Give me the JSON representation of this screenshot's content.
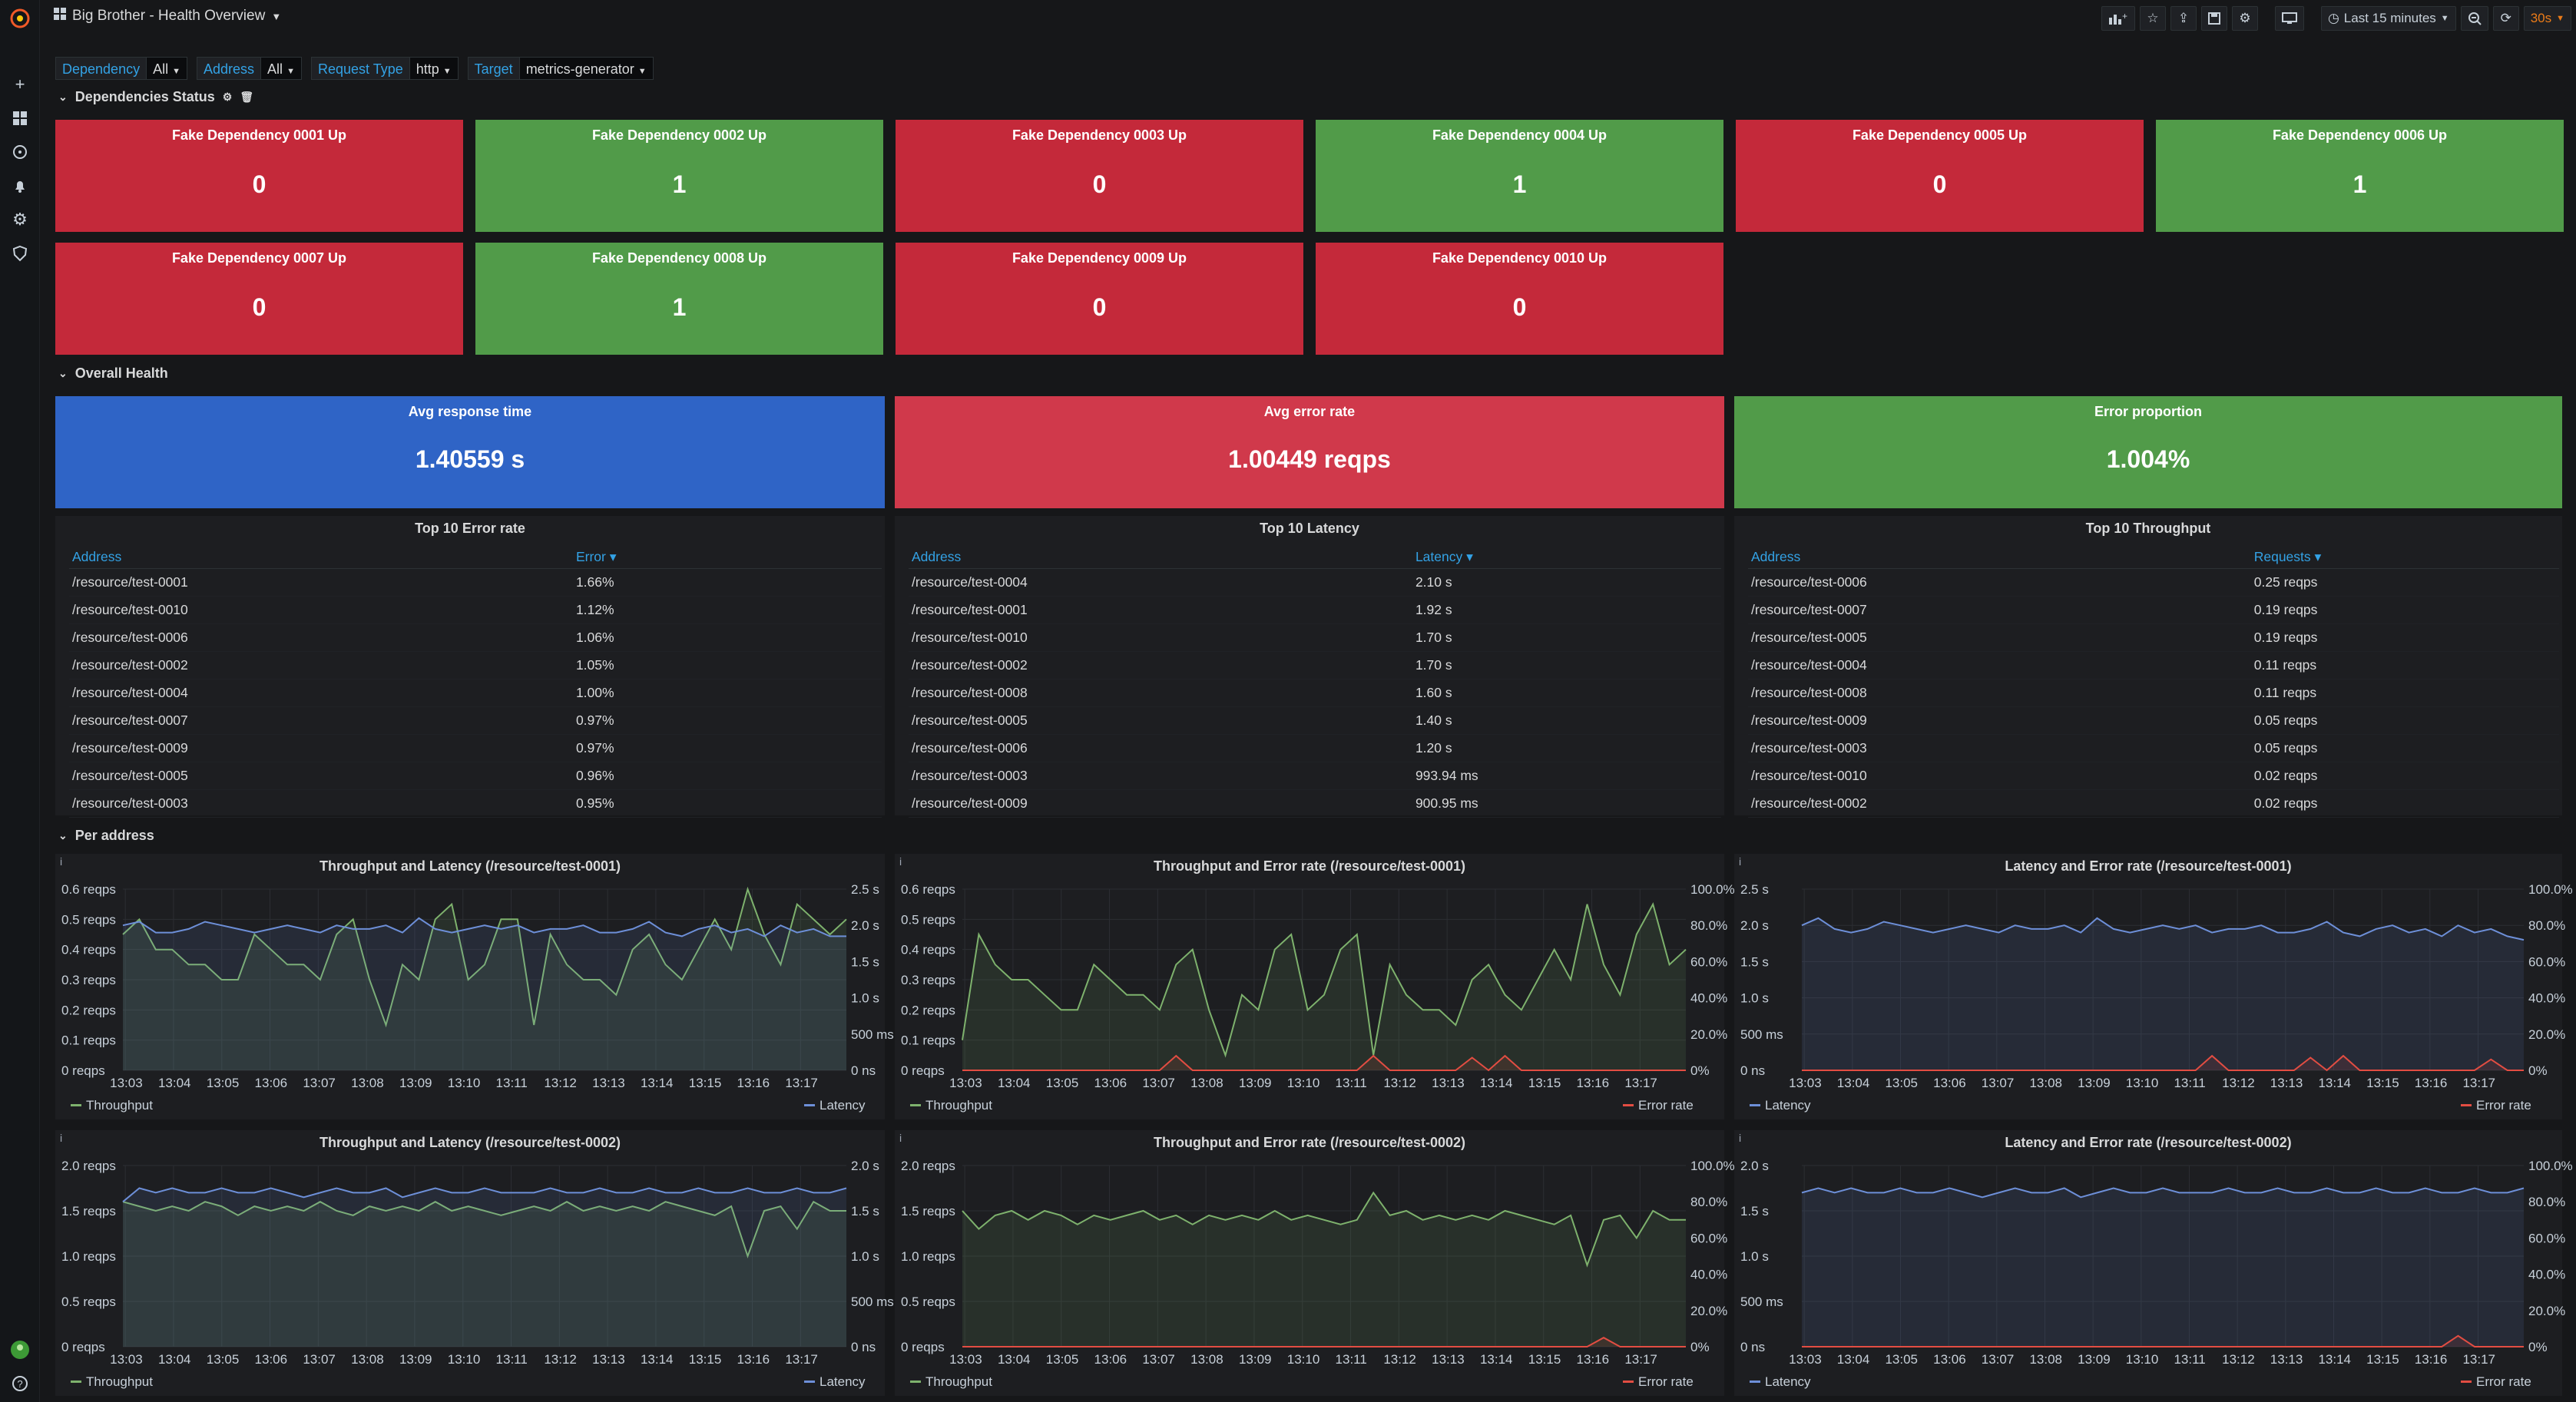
{
  "header": {
    "title": "Big Brother - Health Overview",
    "time_range": "Last 15 minutes",
    "refresh": "30s"
  },
  "variables": [
    {
      "label": "Dependency",
      "value": "All"
    },
    {
      "label": "Address",
      "value": "All"
    },
    {
      "label": "Request Type",
      "value": "http"
    },
    {
      "label": "Target",
      "value": "metrics-generator"
    }
  ],
  "rows": {
    "dependencies": "Dependencies Status",
    "overall": "Overall Health",
    "per_address": "Per address"
  },
  "dependencies": [
    {
      "title": "Fake Dependency 0001 Up",
      "value": "0",
      "status": "down"
    },
    {
      "title": "Fake Dependency 0002 Up",
      "value": "1",
      "status": "up"
    },
    {
      "title": "Fake Dependency 0003 Up",
      "value": "0",
      "status": "down"
    },
    {
      "title": "Fake Dependency 0004 Up",
      "value": "1",
      "status": "up"
    },
    {
      "title": "Fake Dependency 0005 Up",
      "value": "0",
      "status": "down"
    },
    {
      "title": "Fake Dependency 0006 Up",
      "value": "1",
      "status": "up"
    },
    {
      "title": "Fake Dependency 0007 Up",
      "value": "0",
      "status": "down"
    },
    {
      "title": "Fake Dependency 0008 Up",
      "value": "1",
      "status": "up"
    },
    {
      "title": "Fake Dependency 0009 Up",
      "value": "0",
      "status": "down"
    },
    {
      "title": "Fake Dependency 0010 Up",
      "value": "0",
      "status": "down"
    }
  ],
  "overall": [
    {
      "title": "Avg response time",
      "value": "1.40559 s",
      "color": "#2f64c6"
    },
    {
      "title": "Avg error rate",
      "value": "1.00449 reqps",
      "color": "#d0394b"
    },
    {
      "title": "Error proportion",
      "value": "1.004%",
      "color": "#519b49"
    }
  ],
  "tables": [
    {
      "title": "Top 10 Error rate",
      "col1": "Address",
      "col2": "Error",
      "rows": [
        [
          "/resource/test-0001",
          "1.66%"
        ],
        [
          "/resource/test-0010",
          "1.12%"
        ],
        [
          "/resource/test-0006",
          "1.06%"
        ],
        [
          "/resource/test-0002",
          "1.05%"
        ],
        [
          "/resource/test-0004",
          "1.00%"
        ],
        [
          "/resource/test-0007",
          "0.97%"
        ],
        [
          "/resource/test-0009",
          "0.97%"
        ],
        [
          "/resource/test-0005",
          "0.96%"
        ],
        [
          "/resource/test-0003",
          "0.95%"
        ]
      ]
    },
    {
      "title": "Top 10 Latency",
      "col1": "Address",
      "col2": "Latency",
      "rows": [
        [
          "/resource/test-0004",
          "2.10 s"
        ],
        [
          "/resource/test-0001",
          "1.92 s"
        ],
        [
          "/resource/test-0010",
          "1.70 s"
        ],
        [
          "/resource/test-0002",
          "1.70 s"
        ],
        [
          "/resource/test-0008",
          "1.60 s"
        ],
        [
          "/resource/test-0005",
          "1.40 s"
        ],
        [
          "/resource/test-0006",
          "1.20 s"
        ],
        [
          "/resource/test-0003",
          "993.94 ms"
        ],
        [
          "/resource/test-0009",
          "900.95 ms"
        ]
      ]
    },
    {
      "title": "Top 10 Throughput",
      "col1": "Address",
      "col2": "Requests",
      "rows": [
        [
          "/resource/test-0006",
          "0.25 reqps"
        ],
        [
          "/resource/test-0007",
          "0.19 reqps"
        ],
        [
          "/resource/test-0005",
          "0.19 reqps"
        ],
        [
          "/resource/test-0004",
          "0.11 reqps"
        ],
        [
          "/resource/test-0008",
          "0.11 reqps"
        ],
        [
          "/resource/test-0009",
          "0.05 reqps"
        ],
        [
          "/resource/test-0003",
          "0.05 reqps"
        ],
        [
          "/resource/test-0010",
          "0.02 reqps"
        ],
        [
          "/resource/test-0002",
          "0.02 reqps"
        ]
      ]
    }
  ],
  "chart_data": [
    {
      "type": "line",
      "title": "Throughput and Latency (/resource/test-0001)",
      "x_ticks": [
        "13:03",
        "13:04",
        "13:05",
        "13:06",
        "13:07",
        "13:08",
        "13:09",
        "13:10",
        "13:11",
        "13:12",
        "13:13",
        "13:14",
        "13:15",
        "13:16",
        "13:17"
      ],
      "left_ticks": [
        "0 reqps",
        "0.1 reqps",
        "0.2 reqps",
        "0.3 reqps",
        "0.4 reqps",
        "0.5 reqps",
        "0.6 reqps"
      ],
      "right_ticks": [
        "0 ns",
        "500 ms",
        "1.0 s",
        "1.5 s",
        "2.0 s",
        "2.5 s"
      ],
      "ylim_left": [
        0,
        0.6
      ],
      "ylim_right": [
        0,
        2.5
      ],
      "series": [
        {
          "name": "Throughput",
          "color": "#7eb26d",
          "axis": "left",
          "values": [
            0.45,
            0.5,
            0.4,
            0.4,
            0.35,
            0.35,
            0.3,
            0.3,
            0.45,
            0.4,
            0.35,
            0.35,
            0.3,
            0.45,
            0.5,
            0.3,
            0.15,
            0.35,
            0.3,
            0.5,
            0.55,
            0.3,
            0.35,
            0.5,
            0.5,
            0.15,
            0.45,
            0.35,
            0.3,
            0.3,
            0.25,
            0.4,
            0.45,
            0.35,
            0.3,
            0.4,
            0.5,
            0.4,
            0.6,
            0.45,
            0.35,
            0.55,
            0.5,
            0.45,
            0.5
          ]
        },
        {
          "name": "Latency",
          "color": "#6d8fd8",
          "axis": "right",
          "values": [
            2.0,
            2.05,
            1.9,
            1.9,
            1.95,
            2.05,
            2.0,
            1.95,
            1.9,
            1.95,
            2.0,
            1.95,
            1.9,
            2.0,
            1.95,
            1.95,
            2.0,
            1.9,
            2.1,
            1.95,
            1.9,
            1.95,
            2.0,
            1.95,
            2.0,
            1.9,
            1.95,
            1.95,
            2.0,
            1.9,
            1.9,
            1.95,
            2.05,
            1.9,
            1.85,
            1.95,
            2.0,
            1.9,
            1.95,
            1.85,
            2.0,
            1.9,
            1.95,
            1.85,
            1.85
          ]
        }
      ]
    },
    {
      "type": "line",
      "title": "Throughput and Error rate (/resource/test-0001)",
      "x_ticks": [
        "13:03",
        "13:04",
        "13:05",
        "13:06",
        "13:07",
        "13:08",
        "13:09",
        "13:10",
        "13:11",
        "13:12",
        "13:13",
        "13:14",
        "13:15",
        "13:16",
        "13:17"
      ],
      "left_ticks": [
        "0 reqps",
        "0.1 reqps",
        "0.2 reqps",
        "0.3 reqps",
        "0.4 reqps",
        "0.5 reqps",
        "0.6 reqps"
      ],
      "right_ticks": [
        "0%",
        "20.0%",
        "40.0%",
        "60.0%",
        "80.0%",
        "100.0%"
      ],
      "ylim_left": [
        0,
        0.6
      ],
      "ylim_right": [
        0,
        100
      ],
      "series": [
        {
          "name": "Throughput",
          "color": "#7eb26d",
          "axis": "left",
          "values": [
            0.1,
            0.45,
            0.35,
            0.3,
            0.3,
            0.25,
            0.2,
            0.2,
            0.35,
            0.3,
            0.25,
            0.25,
            0.2,
            0.35,
            0.4,
            0.2,
            0.05,
            0.25,
            0.2,
            0.4,
            0.45,
            0.2,
            0.25,
            0.4,
            0.45,
            0.05,
            0.35,
            0.25,
            0.2,
            0.2,
            0.15,
            0.3,
            0.35,
            0.25,
            0.2,
            0.3,
            0.4,
            0.3,
            0.55,
            0.35,
            0.25,
            0.45,
            0.55,
            0.35,
            0.4
          ]
        },
        {
          "name": "Error rate",
          "color": "#e24d42",
          "axis": "right",
          "values": [
            0,
            0,
            0,
            0,
            0,
            0,
            0,
            0,
            0,
            0,
            0,
            0,
            0,
            8,
            0,
            0,
            0,
            0,
            0,
            0,
            0,
            0,
            0,
            0,
            0,
            8,
            0,
            0,
            0,
            0,
            0,
            7,
            0,
            8,
            0,
            0,
            0,
            0,
            0,
            0,
            0,
            0,
            0,
            0,
            0
          ]
        }
      ]
    },
    {
      "type": "line",
      "title": "Latency and Error rate (/resource/test-0001)",
      "x_ticks": [
        "13:03",
        "13:04",
        "13:05",
        "13:06",
        "13:07",
        "13:08",
        "13:09",
        "13:10",
        "13:11",
        "13:12",
        "13:13",
        "13:14",
        "13:15",
        "13:16",
        "13:17"
      ],
      "left_ticks": [
        "0 ns",
        "500 ms",
        "1.0 s",
        "1.5 s",
        "2.0 s",
        "2.5 s"
      ],
      "right_ticks": [
        "0%",
        "20.0%",
        "40.0%",
        "60.0%",
        "80.0%",
        "100.0%"
      ],
      "ylim_left": [
        0,
        2.5
      ],
      "ylim_right": [
        0,
        100
      ],
      "series": [
        {
          "name": "Latency",
          "color": "#6d8fd8",
          "axis": "left",
          "values": [
            2.0,
            2.1,
            1.95,
            1.9,
            1.95,
            2.05,
            2.0,
            1.95,
            1.9,
            1.95,
            2.0,
            1.95,
            1.9,
            2.0,
            1.95,
            1.95,
            2.0,
            1.9,
            2.1,
            1.95,
            1.9,
            1.95,
            2.0,
            1.95,
            2.0,
            1.9,
            1.95,
            1.95,
            2.0,
            1.9,
            1.9,
            1.95,
            2.05,
            1.9,
            1.85,
            1.95,
            2.0,
            1.9,
            1.95,
            1.85,
            2.0,
            1.9,
            1.95,
            1.85,
            1.8
          ]
        },
        {
          "name": "Error rate",
          "color": "#e24d42",
          "axis": "right",
          "values": [
            0,
            0,
            0,
            0,
            0,
            0,
            0,
            0,
            0,
            0,
            0,
            0,
            0,
            0,
            0,
            0,
            0,
            0,
            0,
            0,
            0,
            0,
            0,
            0,
            0,
            8,
            0,
            0,
            0,
            0,
            0,
            7,
            0,
            8,
            0,
            0,
            0,
            0,
            0,
            0,
            0,
            0,
            6,
            0,
            0
          ]
        }
      ]
    },
    {
      "type": "line",
      "title": "Throughput and Latency (/resource/test-0002)",
      "x_ticks": [
        "13:03",
        "13:04",
        "13:05",
        "13:06",
        "13:07",
        "13:08",
        "13:09",
        "13:10",
        "13:11",
        "13:12",
        "13:13",
        "13:14",
        "13:15",
        "13:16",
        "13:17"
      ],
      "left_ticks": [
        "0 reqps",
        "0.5 reqps",
        "1.0 reqps",
        "1.5 reqps",
        "2.0 reqps"
      ],
      "right_ticks": [
        "0 ns",
        "500 ms",
        "1.0 s",
        "1.5 s",
        "2.0 s"
      ],
      "ylim_left": [
        0,
        2.0
      ],
      "ylim_right": [
        0,
        2.0
      ],
      "series": [
        {
          "name": "Throughput",
          "color": "#7eb26d",
          "axis": "left",
          "values": [
            1.6,
            1.55,
            1.5,
            1.55,
            1.5,
            1.6,
            1.55,
            1.45,
            1.55,
            1.5,
            1.55,
            1.5,
            1.6,
            1.5,
            1.45,
            1.55,
            1.5,
            1.55,
            1.5,
            1.6,
            1.5,
            1.55,
            1.5,
            1.45,
            1.5,
            1.55,
            1.5,
            1.6,
            1.5,
            1.55,
            1.5,
            1.55,
            1.5,
            1.6,
            1.55,
            1.5,
            1.45,
            1.55,
            1.0,
            1.5,
            1.55,
            1.3,
            1.6,
            1.5,
            1.5
          ]
        },
        {
          "name": "Latency",
          "color": "#6d8fd8",
          "axis": "right",
          "values": [
            1.6,
            1.75,
            1.7,
            1.75,
            1.7,
            1.7,
            1.75,
            1.7,
            1.7,
            1.75,
            1.7,
            1.65,
            1.7,
            1.75,
            1.7,
            1.7,
            1.75,
            1.65,
            1.7,
            1.75,
            1.7,
            1.7,
            1.75,
            1.7,
            1.7,
            1.7,
            1.75,
            1.7,
            1.7,
            1.75,
            1.7,
            1.7,
            1.75,
            1.7,
            1.7,
            1.75,
            1.7,
            1.7,
            1.75,
            1.7,
            1.7,
            1.75,
            1.7,
            1.7,
            1.75
          ]
        }
      ]
    },
    {
      "type": "line",
      "title": "Throughput and Error rate (/resource/test-0002)",
      "x_ticks": [
        "13:03",
        "13:04",
        "13:05",
        "13:06",
        "13:07",
        "13:08",
        "13:09",
        "13:10",
        "13:11",
        "13:12",
        "13:13",
        "13:14",
        "13:15",
        "13:16",
        "13:17"
      ],
      "left_ticks": [
        "0 reqps",
        "0.5 reqps",
        "1.0 reqps",
        "1.5 reqps",
        "2.0 reqps"
      ],
      "right_ticks": [
        "0%",
        "20.0%",
        "40.0%",
        "60.0%",
        "80.0%",
        "100.0%"
      ],
      "ylim_left": [
        0,
        2.0
      ],
      "ylim_right": [
        0,
        100
      ],
      "series": [
        {
          "name": "Throughput",
          "color": "#7eb26d",
          "axis": "left",
          "values": [
            1.5,
            1.3,
            1.45,
            1.5,
            1.4,
            1.5,
            1.45,
            1.35,
            1.45,
            1.4,
            1.45,
            1.5,
            1.4,
            1.45,
            1.35,
            1.45,
            1.4,
            1.45,
            1.4,
            1.5,
            1.4,
            1.45,
            1.4,
            1.35,
            1.4,
            1.7,
            1.45,
            1.5,
            1.4,
            1.45,
            1.4,
            1.45,
            1.4,
            1.5,
            1.45,
            1.4,
            1.35,
            1.45,
            0.9,
            1.4,
            1.45,
            1.2,
            1.5,
            1.4,
            1.4
          ]
        },
        {
          "name": "Error rate",
          "color": "#e24d42",
          "axis": "right",
          "values": [
            0,
            0,
            0,
            0,
            0,
            0,
            0,
            0,
            0,
            0,
            0,
            0,
            0,
            0,
            0,
            0,
            0,
            0,
            0,
            0,
            0,
            0,
            0,
            0,
            0,
            0,
            0,
            0,
            0,
            0,
            0,
            0,
            0,
            0,
            0,
            0,
            0,
            0,
            0,
            5,
            0,
            0,
            0,
            0,
            0
          ]
        }
      ]
    },
    {
      "type": "line",
      "title": "Latency and Error rate (/resource/test-0002)",
      "x_ticks": [
        "13:03",
        "13:04",
        "13:05",
        "13:06",
        "13:07",
        "13:08",
        "13:09",
        "13:10",
        "13:11",
        "13:12",
        "13:13",
        "13:14",
        "13:15",
        "13:16",
        "13:17"
      ],
      "left_ticks": [
        "0 ns",
        "500 ms",
        "1.0 s",
        "1.5 s",
        "2.0 s"
      ],
      "right_ticks": [
        "0%",
        "20.0%",
        "40.0%",
        "60.0%",
        "80.0%",
        "100.0%"
      ],
      "ylim_left": [
        0,
        2.0
      ],
      "ylim_right": [
        0,
        100
      ],
      "series": [
        {
          "name": "Latency",
          "color": "#6d8fd8",
          "axis": "left",
          "values": [
            1.7,
            1.75,
            1.7,
            1.75,
            1.7,
            1.7,
            1.75,
            1.7,
            1.7,
            1.75,
            1.7,
            1.65,
            1.7,
            1.75,
            1.7,
            1.7,
            1.75,
            1.65,
            1.7,
            1.75,
            1.7,
            1.7,
            1.75,
            1.7,
            1.7,
            1.7,
            1.75,
            1.7,
            1.7,
            1.75,
            1.7,
            1.7,
            1.75,
            1.7,
            1.7,
            1.75,
            1.7,
            1.7,
            1.75,
            1.7,
            1.7,
            1.75,
            1.7,
            1.7,
            1.75
          ]
        },
        {
          "name": "Error rate",
          "color": "#e24d42",
          "axis": "right",
          "values": [
            0,
            0,
            0,
            0,
            0,
            0,
            0,
            0,
            0,
            0,
            0,
            0,
            0,
            0,
            0,
            0,
            0,
            0,
            0,
            0,
            0,
            0,
            0,
            0,
            0,
            0,
            0,
            0,
            0,
            0,
            0,
            0,
            0,
            0,
            0,
            0,
            0,
            0,
            0,
            0,
            6,
            0,
            0,
            0,
            0
          ]
        }
      ]
    }
  ]
}
